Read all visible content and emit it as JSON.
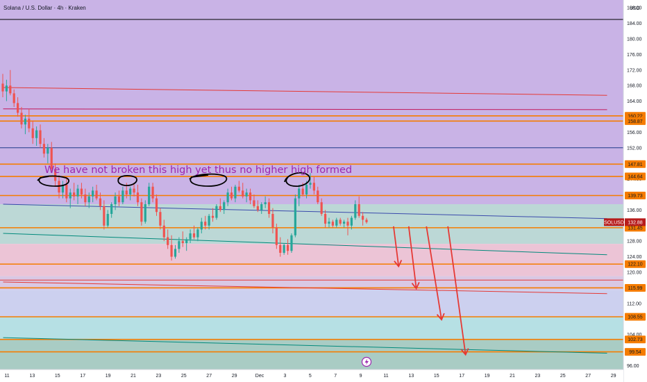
{
  "header": {
    "title": "Solana / U.S. Dollar · 4h · Kraken",
    "currency": "USD"
  },
  "chart_data": {
    "type": "candlestick",
    "symbol": "SOLUSD",
    "last_price": 132.88,
    "ylim": [
      95,
      190
    ],
    "y_ticks": [
      96,
      100,
      104,
      108,
      112,
      116,
      120,
      124,
      128,
      132,
      136,
      140,
      144,
      148,
      152,
      156,
      160,
      164,
      168,
      172,
      176,
      180,
      184,
      188
    ],
    "y_tick_labels": [
      "96.00",
      "100.00",
      "104.00",
      "108.00",
      "112.00",
      "116.00",
      "120.00",
      "124.00",
      "128.00",
      "132.00",
      "136.00",
      "140.00",
      "144.00",
      "148.00",
      "152.00",
      "156.00",
      "160.00",
      "164.00",
      "168.00",
      "172.00",
      "176.00",
      "180.00",
      "184.00",
      "188.00"
    ],
    "x_range": [
      10.7,
      29.2
    ],
    "x_ticks": [
      {
        "x": 11,
        "label": "11"
      },
      {
        "x": 13,
        "label": "13"
      },
      {
        "x": 15,
        "label": "15"
      },
      {
        "x": 17,
        "label": "17"
      },
      {
        "x": 19,
        "label": "19"
      },
      {
        "x": 21,
        "label": "21"
      },
      {
        "x": 23,
        "label": "23"
      },
      {
        "x": 25,
        "label": "25"
      },
      {
        "x": 27,
        "label": "27"
      },
      {
        "x": 29,
        "label": "29"
      },
      {
        "x": 31,
        "label": "Dec"
      },
      {
        "x": 33,
        "label": "3"
      },
      {
        "x": 35,
        "label": "5"
      },
      {
        "x": 37,
        "label": "7"
      },
      {
        "x": 39,
        "label": "9"
      },
      {
        "x": 41,
        "label": "11"
      },
      {
        "x": 43,
        "label": "13"
      },
      {
        "x": 45,
        "label": "15"
      },
      {
        "x": 47,
        "label": "17"
      },
      {
        "x": 49,
        "label": "19"
      },
      {
        "x": 51,
        "label": "21"
      },
      {
        "x": 53,
        "label": "23"
      },
      {
        "x": 55,
        "label": "25"
      },
      {
        "x": 57,
        "label": "27"
      },
      {
        "x": 59,
        "label": "29"
      }
    ],
    "levels": [
      {
        "label": "160.22",
        "value": 160.22,
        "color": "#f57c00"
      },
      {
        "label": "158.87",
        "value": 158.87,
        "color": "#f57c00"
      },
      {
        "label": "147.81",
        "value": 147.81,
        "color": "#f57c00"
      },
      {
        "label": "144.64",
        "value": 144.64,
        "color": "#f57c00"
      },
      {
        "label": "139.73",
        "value": 139.73,
        "color": "#f57c00"
      },
      {
        "label": "131.45",
        "value": 131.45,
        "color": "#f57c00"
      },
      {
        "label": "122.10",
        "value": 122.1,
        "color": "#f57c00"
      },
      {
        "label": "115.99",
        "value": 115.99,
        "color": "#f57c00"
      },
      {
        "label": "108.55",
        "value": 108.55,
        "color": "#f57c00"
      },
      {
        "label": "102.73",
        "value": 102.73,
        "color": "#f57c00"
      },
      {
        "label": "99.54",
        "value": 99.54,
        "color": "#f57c00"
      }
    ],
    "extra_lines": [
      {
        "value": 185.0,
        "color": "#000000"
      },
      {
        "value": 152.0,
        "color": "#1e3a8a"
      },
      {
        "value": 118.0,
        "color": "#e53935"
      }
    ],
    "sloped_lines": [
      {
        "from": [
          10.7,
          167.5
        ],
        "to": [
          58.5,
          165.5
        ],
        "color": "#e53935"
      },
      {
        "from": [
          10.7,
          162.0
        ],
        "to": [
          58.5,
          161.8
        ],
        "color": "#c2185b"
      },
      {
        "from": [
          10.7,
          137.5
        ],
        "to": [
          58.5,
          133.8
        ],
        "color": "#3949ab"
      },
      {
        "from": [
          10.7,
          130.0
        ],
        "to": [
          58.5,
          124.5
        ],
        "color": "#00897b"
      },
      {
        "from": [
          10.7,
          117.5
        ],
        "to": [
          58.5,
          114.5
        ],
        "color": "#e53935"
      },
      {
        "from": [
          10.7,
          103.2
        ],
        "to": [
          58.5,
          99.2
        ],
        "color": "#00897b"
      }
    ],
    "zones": [
      {
        "from": 190,
        "to": 137.5,
        "color": "#c9b3e6"
      },
      {
        "from": 137.5,
        "to": 127.3,
        "color": "#bcd8d6"
      },
      {
        "from": 127.3,
        "to": 119.0,
        "color": "#ecc4d6"
      },
      {
        "from": 119.0,
        "to": 115.5,
        "color": "#d9c8e4"
      },
      {
        "from": 115.5,
        "to": 108.6,
        "color": "#ccd0ef"
      },
      {
        "from": 108.6,
        "to": 102.8,
        "color": "#b6e0e4"
      },
      {
        "from": 102.8,
        "to": 95,
        "color": "#a9ccc4"
      }
    ],
    "candles_ohlc": [
      [
        168.5,
        171.0,
        165.0,
        166.5
      ],
      [
        166.5,
        169.5,
        164.0,
        168.0
      ],
      [
        168.0,
        172.0,
        165.5,
        166.0
      ],
      [
        166.0,
        167.0,
        162.5,
        163.5
      ],
      [
        163.5,
        165.0,
        160.0,
        161.0
      ],
      [
        161.0,
        162.5,
        157.0,
        158.0
      ],
      [
        158.0,
        160.5,
        155.5,
        159.5
      ],
      [
        159.5,
        162.0,
        156.0,
        157.0
      ],
      [
        157.0,
        159.0,
        153.0,
        154.5
      ],
      [
        154.5,
        157.5,
        152.5,
        156.5
      ],
      [
        156.5,
        158.0,
        152.0,
        153.0
      ],
      [
        153.0,
        154.5,
        149.5,
        150.5
      ],
      [
        150.5,
        153.0,
        148.0,
        152.0
      ],
      [
        152.0,
        153.5,
        145.5,
        146.5
      ],
      [
        146.5,
        148.0,
        142.0,
        143.5
      ],
      [
        143.5,
        145.0,
        139.0,
        140.5
      ],
      [
        140.5,
        143.5,
        139.0,
        142.5
      ],
      [
        142.5,
        144.5,
        138.0,
        139.0
      ],
      [
        139.0,
        141.5,
        136.5,
        140.5
      ],
      [
        140.5,
        143.0,
        138.5,
        139.5
      ],
      [
        139.5,
        142.5,
        137.5,
        141.5
      ],
      [
        141.5,
        143.0,
        139.0,
        140.0
      ],
      [
        140.0,
        141.5,
        137.0,
        138.0
      ],
      [
        138.0,
        140.5,
        136.5,
        139.5
      ],
      [
        139.5,
        142.0,
        138.0,
        141.0
      ],
      [
        141.0,
        142.5,
        138.5,
        139.0
      ],
      [
        139.0,
        140.5,
        136.0,
        137.0
      ],
      [
        137.0,
        138.5,
        131.0,
        132.0
      ],
      [
        132.0,
        136.0,
        131.5,
        135.0
      ],
      [
        135.0,
        138.0,
        134.0,
        137.5
      ],
      [
        137.5,
        140.5,
        136.0,
        139.5
      ],
      [
        139.5,
        141.0,
        137.0,
        138.0
      ],
      [
        138.0,
        142.0,
        137.5,
        141.0
      ],
      [
        141.0,
        143.0,
        139.0,
        140.0
      ],
      [
        140.0,
        142.0,
        138.5,
        141.5
      ],
      [
        141.5,
        143.0,
        139.5,
        140.5
      ],
      [
        140.5,
        142.5,
        137.0,
        138.0
      ],
      [
        138.0,
        139.0,
        132.0,
        133.0
      ],
      [
        133.0,
        138.5,
        132.5,
        137.5
      ],
      [
        137.5,
        143.0,
        137.0,
        142.0
      ],
      [
        142.0,
        143.0,
        138.0,
        139.0
      ],
      [
        139.0,
        140.0,
        134.5,
        135.5
      ],
      [
        135.5,
        136.5,
        131.0,
        132.0
      ],
      [
        132.0,
        133.5,
        128.0,
        129.0
      ],
      [
        129.0,
        131.0,
        126.0,
        127.0
      ],
      [
        127.0,
        129.5,
        123.0,
        124.0
      ],
      [
        124.0,
        127.0,
        123.5,
        126.0
      ],
      [
        126.0,
        129.0,
        125.0,
        128.0
      ],
      [
        128.0,
        130.5,
        126.5,
        127.5
      ],
      [
        127.5,
        129.0,
        125.5,
        128.5
      ],
      [
        128.5,
        131.0,
        127.5,
        130.0
      ],
      [
        130.0,
        132.0,
        128.5,
        129.0
      ],
      [
        129.0,
        131.5,
        128.0,
        131.0
      ],
      [
        131.0,
        134.0,
        130.0,
        133.0
      ],
      [
        133.0,
        134.5,
        131.0,
        132.0
      ],
      [
        132.0,
        135.0,
        131.0,
        134.5
      ],
      [
        134.5,
        136.5,
        133.0,
        134.0
      ],
      [
        134.0,
        137.5,
        133.5,
        137.0
      ],
      [
        137.0,
        139.0,
        135.5,
        136.0
      ],
      [
        136.0,
        138.5,
        135.0,
        138.0
      ],
      [
        138.0,
        141.5,
        137.0,
        140.5
      ],
      [
        140.5,
        142.0,
        138.5,
        139.0
      ],
      [
        139.0,
        142.5,
        138.0,
        142.0
      ],
      [
        142.0,
        143.5,
        140.5,
        141.0
      ],
      [
        141.0,
        143.0,
        139.0,
        139.5
      ],
      [
        139.5,
        141.5,
        138.0,
        140.5
      ],
      [
        140.5,
        141.5,
        137.5,
        138.5
      ],
      [
        138.5,
        140.0,
        136.5,
        137.0
      ],
      [
        137.0,
        138.5,
        135.5,
        136.0
      ],
      [
        136.0,
        138.0,
        135.0,
        137.5
      ],
      [
        137.5,
        139.5,
        136.5,
        138.0
      ],
      [
        138.0,
        139.0,
        134.0,
        135.0
      ],
      [
        135.0,
        136.5,
        130.0,
        131.5
      ],
      [
        131.5,
        132.5,
        126.0,
        127.0
      ],
      [
        127.0,
        129.0,
        124.0,
        125.0
      ],
      [
        125.0,
        127.5,
        124.5,
        127.0
      ],
      [
        127.0,
        128.5,
        124.5,
        125.5
      ],
      [
        125.5,
        130.0,
        125.0,
        129.5
      ],
      [
        129.5,
        140.0,
        129.0,
        139.0
      ],
      [
        139.0,
        142.5,
        137.0,
        141.5
      ],
      [
        141.5,
        143.0,
        139.5,
        140.0
      ],
      [
        140.0,
        143.5,
        139.0,
        142.5
      ],
      [
        142.5,
        145.5,
        141.5,
        143.0
      ],
      [
        143.0,
        144.5,
        140.0,
        141.0
      ],
      [
        141.0,
        142.0,
        137.5,
        138.0
      ],
      [
        138.0,
        139.0,
        134.5,
        135.0
      ],
      [
        135.0,
        136.0,
        131.5,
        132.5
      ],
      [
        132.5,
        134.0,
        131.5,
        133.0
      ],
      [
        133.0,
        133.5,
        131.5,
        132.0
      ],
      [
        132.0,
        134.0,
        131.5,
        133.5
      ],
      [
        133.5,
        134.0,
        132.0,
        132.5
      ],
      [
        132.5,
        133.5,
        131.5,
        133.0
      ],
      [
        133.0,
        134.0,
        129.5,
        132.0
      ],
      [
        132.0,
        134.5,
        131.0,
        134.0
      ],
      [
        134.0,
        138.5,
        133.5,
        137.5
      ],
      [
        137.5,
        139.5,
        134.0,
        134.5
      ],
      [
        134.5,
        135.5,
        132.0,
        133.5
      ],
      [
        133.5,
        134.0,
        132.5,
        132.88
      ]
    ]
  },
  "annotation": {
    "text": "We have not broken this high yet thus no higher high formed",
    "color": "#9c27b0"
  },
  "red_arrows": [
    {
      "from": [
        41.6,
        131.8
      ],
      "to": [
        42.0,
        121.5
      ]
    },
    {
      "from": [
        42.8,
        131.8
      ],
      "to": [
        43.4,
        115.8
      ]
    },
    {
      "from": [
        44.2,
        131.8
      ],
      "to": [
        45.4,
        107.8
      ]
    },
    {
      "from": [
        45.9,
        131.8
      ],
      "to": [
        47.3,
        98.8
      ]
    }
  ],
  "colors": {
    "up": "#26a69a",
    "down": "#ef5350",
    "price_tag": "#b71c1c"
  }
}
